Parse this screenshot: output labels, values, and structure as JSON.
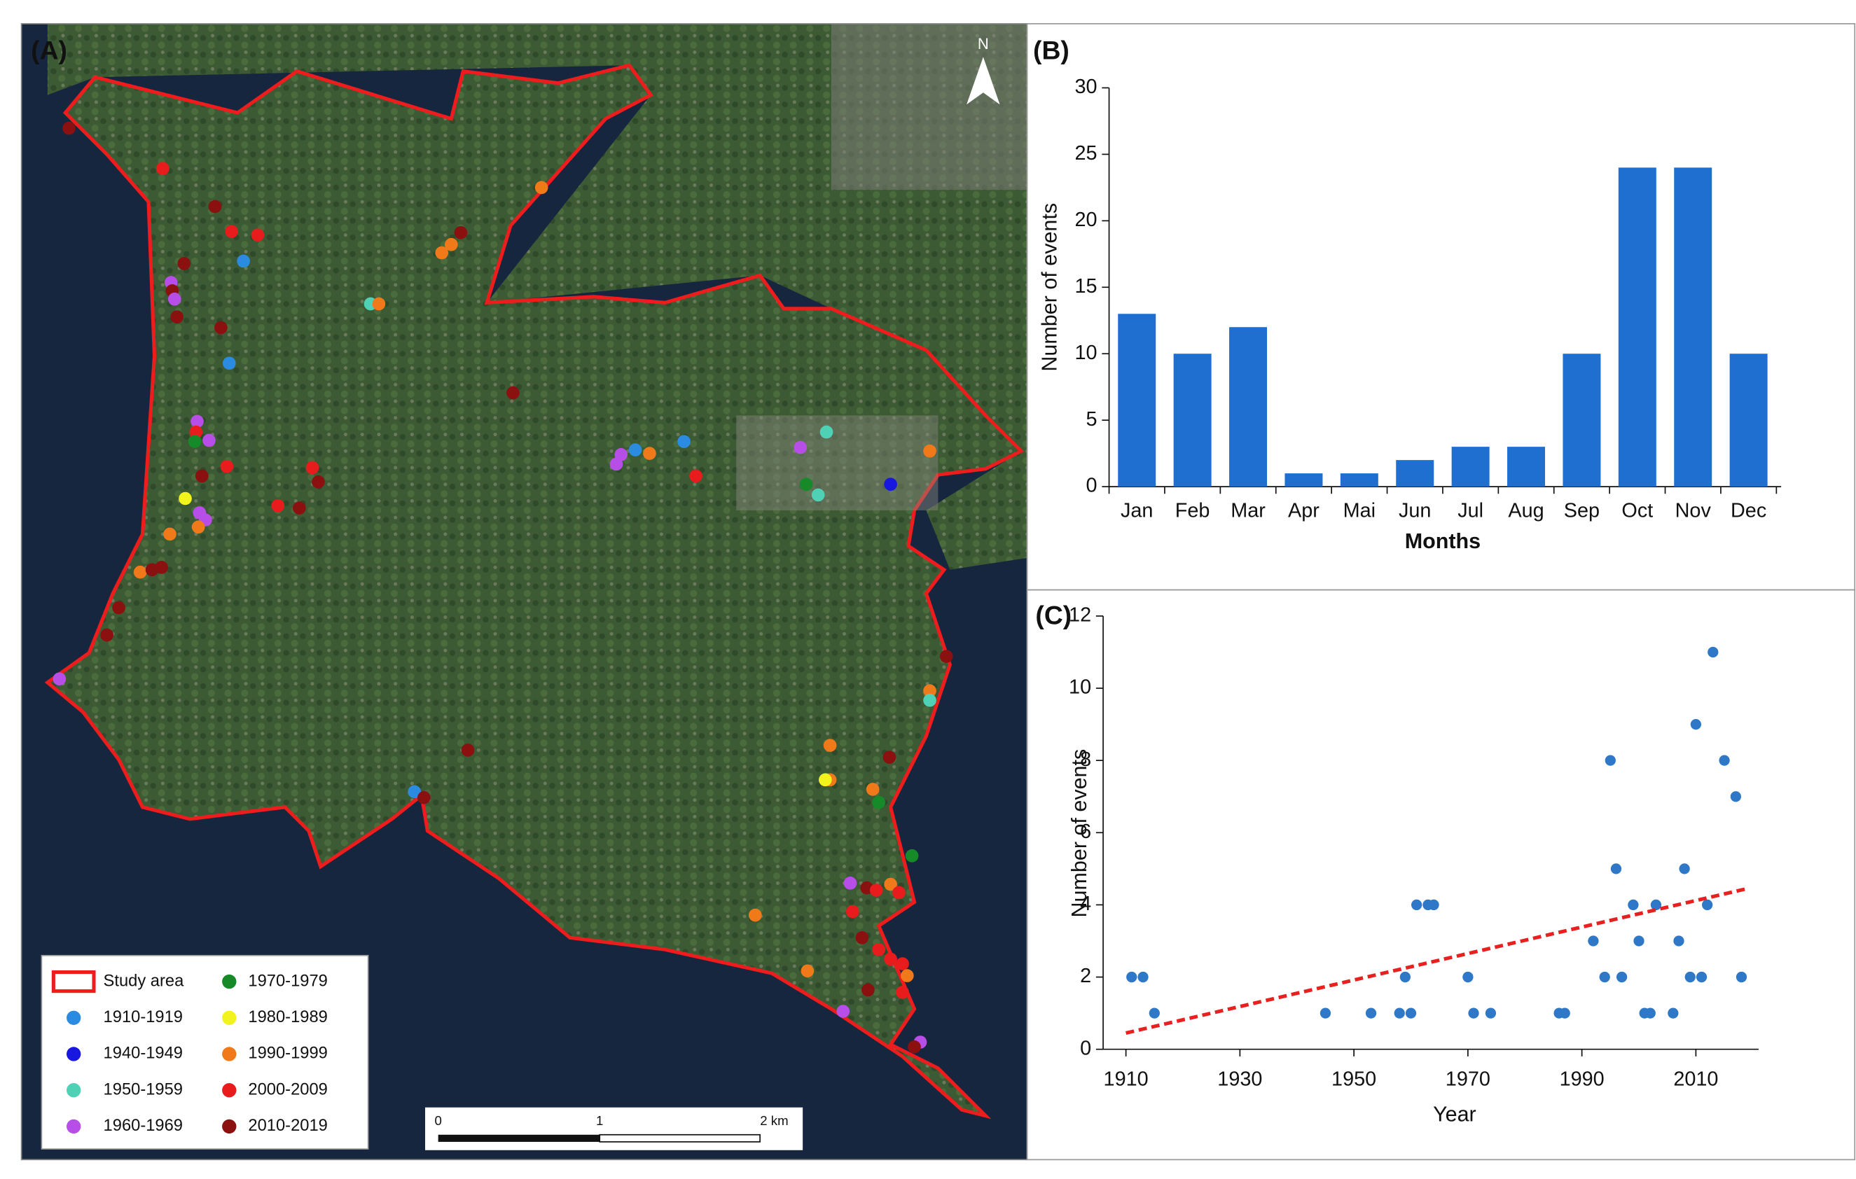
{
  "map": {
    "label": "(A)",
    "north": "N",
    "legend": [
      {
        "label": "Study area",
        "color": "#ee1d1d"
      },
      {
        "label": "1910-1919",
        "color": "#2b8be0"
      },
      {
        "label": "1940-1949",
        "color": "#1717e0"
      },
      {
        "label": "1950-1959",
        "color": "#4fd1b5"
      },
      {
        "label": "1960-1969",
        "color": "#b84ee8"
      },
      {
        "label": "1970-1979",
        "color": "#168a28"
      },
      {
        "label": "1980-1989",
        "color": "#f2f21c"
      },
      {
        "label": "1990-1999",
        "color": "#f07a1a"
      },
      {
        "label": "2000-2009",
        "color": "#e81c1c"
      },
      {
        "label": "2010-2019",
        "color": "#8b1010"
      }
    ],
    "scale": [
      "0",
      "1",
      "2 km"
    ]
  },
  "chart_data": [
    {
      "type": "bar",
      "label": "(B)",
      "x_label": "Months",
      "y_label": "Number of events",
      "categories": [
        "Jan",
        "Feb",
        "Mar",
        "Apr",
        "Mai",
        "Jun",
        "Jul",
        "Aug",
        "Sep",
        "Oct",
        "Nov",
        "Dec"
      ],
      "values": [
        13,
        10,
        12,
        1,
        1,
        2,
        3,
        3,
        10,
        24,
        24,
        10
      ],
      "color": "#1f6fd0",
      "ylim": [
        0,
        30
      ],
      "yticks": [
        0,
        5,
        10,
        15,
        20,
        25,
        30
      ]
    },
    {
      "type": "scatter",
      "label": "(C)",
      "x_label": "Year",
      "y_label": "Number of events",
      "x": [
        1911,
        1913,
        1915,
        1945,
        1953,
        1958,
        1959,
        1960,
        1961,
        1963,
        1964,
        1970,
        1971,
        1974,
        1986,
        1987,
        1992,
        1994,
        1995,
        1996,
        1997,
        1999,
        2000,
        2001,
        2002,
        2003,
        2006,
        2007,
        2008,
        2009,
        2010,
        2011,
        2012,
        2013,
        2015,
        2017,
        2018
      ],
      "values": [
        2,
        2,
        1,
        1,
        1,
        1,
        2,
        1,
        4,
        4,
        4,
        2,
        1,
        1,
        1,
        1,
        3,
        2,
        8,
        5,
        2,
        4,
        3,
        1,
        1,
        4,
        1,
        3,
        5,
        2,
        9,
        2,
        4,
        11,
        8,
        7,
        2
      ],
      "color": "#2f78c8",
      "trend": {
        "x": [
          1910,
          2019
        ],
        "values": [
          0.45,
          4.45
        ],
        "color": "#e8201f"
      },
      "xlim": [
        1906,
        2021
      ],
      "xticks": [
        1910,
        1930,
        1950,
        1970,
        1990,
        2010
      ],
      "ylim": [
        0,
        12
      ],
      "yticks": [
        0,
        2,
        4,
        6,
        8,
        10,
        12
      ]
    }
  ]
}
